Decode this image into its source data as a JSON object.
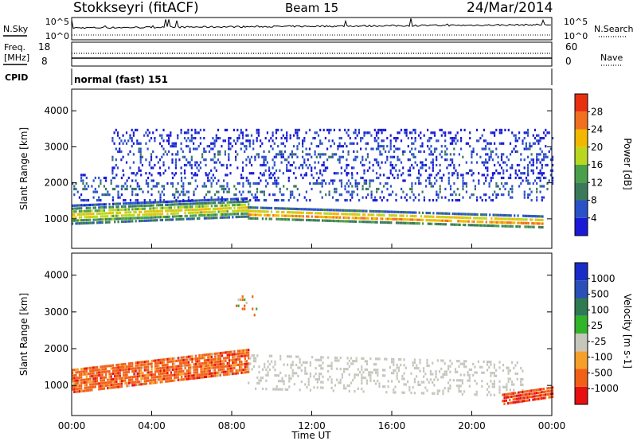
{
  "header": {
    "station": "Stokkseyri (fitACF)",
    "beam": "Beam 15",
    "date": "24/Mar/2014"
  },
  "panels": {
    "nsky_label": "N.Sky",
    "nsky_tick_top": "10^5",
    "nsky_tick_bot": "10^0",
    "nsearch_label": "N.Search",
    "nsearch_tick_top": "10^5",
    "nsearch_tick_bot": "10^0",
    "freq_label_1": "Freq.",
    "freq_label_2": "[MHz]",
    "freq_tick_top": "18",
    "freq_tick_bot": "8",
    "nave_label": "Nave",
    "nave_tick_top": "60",
    "nave_tick_bot": "0",
    "cpid_label": "CPID",
    "cpid_value": "normal (fast) 151"
  },
  "colors": {
    "power": [
      "#1a1ad6",
      "#2a52c8",
      "#3a7a5a",
      "#4aa04a",
      "#b8d820",
      "#f2b800",
      "#f07020",
      "#e83010"
    ],
    "velocity": [
      "#e61010",
      "#f26018",
      "#f5a02a",
      "#c6c6bd",
      "#2fb42a",
      "#2e7a52",
      "#2a4fb8",
      "#1a2cc8"
    ]
  },
  "chart_data": [
    {
      "type": "heatmap",
      "title": "Power",
      "xlabel": "Time UT",
      "ylabel": "Slant Range [km]",
      "x_ticks": [
        "00:00",
        "04:00",
        "08:00",
        "12:00",
        "16:00",
        "20:00",
        "00:00"
      ],
      "y_ticks": [
        1000,
        2000,
        3000,
        4000
      ],
      "xlim_hours": [
        0,
        24
      ],
      "ylim": [
        180,
        4600
      ],
      "colorbar": {
        "label": "Power [dB]",
        "ticks": [
          4,
          8,
          12,
          16,
          20,
          24,
          28
        ],
        "range": [
          0,
          32
        ]
      },
      "regions": [
        {
          "name": "evening-echo-band",
          "x": [
            0,
            8.8
          ],
          "y_center": [
            1150,
            1350
          ],
          "width_km": 500,
          "value_db": 20
        },
        {
          "name": "post-midnight-low-band",
          "x": [
            8.8,
            23.5
          ],
          "y_center": [
            1200,
            950
          ],
          "width_km": 300,
          "value_db": 26
        },
        {
          "name": "upper-band",
          "x": [
            0,
            24
          ],
          "y_center": [
            1900,
            1900
          ],
          "width_km": 700,
          "value_db": 8
        },
        {
          "name": "scattered-high-range",
          "x": [
            2,
            24
          ],
          "y_center": [
            2900,
            2900
          ],
          "width_km": 1200,
          "value_db": 6
        }
      ]
    },
    {
      "type": "heatmap",
      "title": "Velocity",
      "xlabel": "Time UT",
      "ylabel": "Slant Range [km]",
      "x_ticks": [
        "00:00",
        "04:00",
        "08:00",
        "12:00",
        "16:00",
        "20:00",
        "00:00"
      ],
      "y_ticks": [
        1000,
        2000,
        3000,
        4000
      ],
      "xlim_hours": [
        0,
        24
      ],
      "ylim": [
        180,
        4600
      ],
      "colorbar": {
        "label": "Velocity [m s-1]",
        "ticks": [
          1000,
          500,
          100,
          25,
          -25,
          -100,
          -500,
          -1000
        ]
      },
      "regions": [
        {
          "name": "evening-away-flow",
          "x": [
            0,
            8.8
          ],
          "y_center": [
            1150,
            1700
          ],
          "width_km": 600,
          "value_ms": -300
        },
        {
          "name": "ground-scatter",
          "x": [
            8.8,
            22.5
          ],
          "y_center": [
            1400,
            1200
          ],
          "width_km": 900,
          "value_ms": 0
        },
        {
          "name": "dawn-flow",
          "x": [
            21.5,
            24
          ],
          "y_center": [
            650,
            850
          ],
          "width_km": 250,
          "value_ms": -500
        },
        {
          "name": "high-range-burst",
          "x": [
            8.2,
            9.2
          ],
          "y_center": [
            3200,
            3200
          ],
          "width_km": 500,
          "value_ms": -200
        }
      ]
    }
  ]
}
